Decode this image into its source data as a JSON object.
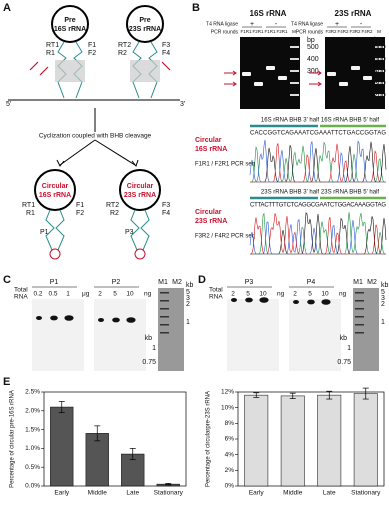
{
  "panel_a": {
    "label": "A",
    "pre_16s": [
      "Pre",
      "16S rRNA"
    ],
    "pre_23s": [
      "Pre",
      "23S rRNA"
    ],
    "primers_16s": [
      "RT1",
      "R1",
      "F1",
      "F2"
    ],
    "primers_23s": [
      "RT2",
      "R2",
      "F3",
      "F4"
    ],
    "five_prime": "5'",
    "three_prime": "3'",
    "step": "Cyclization coupled with BHB cleavage",
    "circ_16s": [
      "Circular",
      "16S rRNA"
    ],
    "circ_23s": [
      "Circular",
      "23S rRNA"
    ],
    "circ_primers_16s": [
      "RT1",
      "R1",
      "F1",
      "F2",
      "P1"
    ],
    "circ_primers_23s": [
      "RT2",
      "R2",
      "F3",
      "F4",
      "P3"
    ]
  },
  "panel_b": {
    "label": "B",
    "gels": [
      {
        "title": "16S rRNA",
        "ligase": "T4 RNA ligase",
        "signs": [
          "+",
          "-"
        ],
        "pcr": "PCR rounds",
        "lanes": [
          "F1R1",
          "F2R1",
          "F1R1",
          "F2R1",
          "M"
        ],
        "unit": "bp",
        "sizes": [
          "500",
          "400",
          "300"
        ]
      },
      {
        "title": "23S rRNA",
        "ligase": "T4 RNA ligase",
        "signs": [
          "+",
          "-"
        ],
        "pcr": "PCR rounds",
        "lanes": [
          "F3R2",
          "F4R2",
          "F3R2",
          "F4R2",
          "M"
        ],
        "unit": "bp",
        "sizes": [
          "600",
          "500",
          "400",
          "300",
          "200"
        ]
      }
    ],
    "sequences": [
      {
        "title": [
          "Circular",
          "16S rRNA"
        ],
        "halves": [
          "16S rRNA BHB 3' half",
          "16S rRNA BHB 5' half"
        ],
        "seq": "CACCGGTCAGAAATCGAAATTCTGACCGGTAG",
        "method": "F1R1 / F2R1 PCR seq"
      },
      {
        "title": [
          "Circular",
          "23S rRNA"
        ],
        "halves": [
          "23S rRNA BHB 3' half",
          "23S rRNA BHB 5' half"
        ],
        "seq": "CTTACTTTGTCTCAGGCGAATCTGGACAAAGGTAG",
        "method": "F3R2 / F4R2 PCR seq"
      }
    ]
  },
  "panel_c": {
    "label": "C",
    "total": [
      "Total",
      "RNA"
    ],
    "groups": [
      {
        "name": "P1",
        "doses": [
          "0.2",
          "0.5",
          "1"
        ],
        "unit": "μg"
      },
      {
        "name": "P2",
        "doses": [
          "2",
          "5",
          "10"
        ],
        "unit": "ng"
      }
    ],
    "markers": [
      "M1",
      "M2"
    ],
    "unit": "kb",
    "kb_left": [
      "1",
      "0.75"
    ],
    "kb_right": [
      "5",
      "3",
      "2",
      "1"
    ]
  },
  "panel_d": {
    "label": "D",
    "total": [
      "Total",
      "RNA"
    ],
    "groups": [
      {
        "name": "P3",
        "doses": [
          "2",
          "5",
          "10"
        ],
        "unit": "ng"
      },
      {
        "name": "P4",
        "doses": [
          "2",
          "5",
          "10"
        ],
        "unit": "ng"
      }
    ],
    "markers": [
      "M1",
      "M2"
    ],
    "unit": "kb",
    "kb_left": [
      "1",
      "0.75"
    ],
    "kb_right": [
      "5",
      "3",
      "2",
      "1"
    ]
  },
  "panel_e": {
    "label": "E"
  },
  "chart_data": [
    {
      "type": "bar",
      "ylabel": "Percentage of circular pre-16S rRNA",
      "categories": [
        "Early",
        "Middle",
        "Late",
        "Stationary"
      ],
      "values": [
        2.1,
        1.4,
        0.85,
        0.05
      ],
      "errors": [
        0.15,
        0.2,
        0.15,
        0.02
      ],
      "color": "#555555",
      "ylim": [
        0,
        2.5
      ],
      "yticks": [
        {
          "value": 0,
          "label": "0.0%"
        },
        {
          "value": 0.5,
          "label": "0.5%"
        },
        {
          "value": 1,
          "label": "1.0%"
        },
        {
          "value": 1.5,
          "label": "1.5%"
        },
        {
          "value": 2,
          "label": "2.0%"
        },
        {
          "value": 2.5,
          "label": "2.5%"
        }
      ]
    },
    {
      "type": "bar",
      "ylabel": "Percentage of circularpre-23S rRNA",
      "categories": [
        "Early",
        "Middle",
        "Late",
        "Stationary"
      ],
      "values": [
        11.6,
        11.5,
        11.6,
        11.8
      ],
      "errors": [
        0.3,
        0.35,
        0.5,
        0.7
      ],
      "color": "#dddddd",
      "ylim": [
        0,
        12
      ],
      "yticks": [
        {
          "value": 0,
          "label": "0%"
        },
        {
          "value": 2,
          "label": "2%"
        },
        {
          "value": 4,
          "label": "4%"
        },
        {
          "value": 6,
          "label": "6%"
        },
        {
          "value": 8,
          "label": "8%"
        },
        {
          "value": 10,
          "label": "10%"
        },
        {
          "value": 12,
          "label": "12%"
        }
      ]
    }
  ]
}
